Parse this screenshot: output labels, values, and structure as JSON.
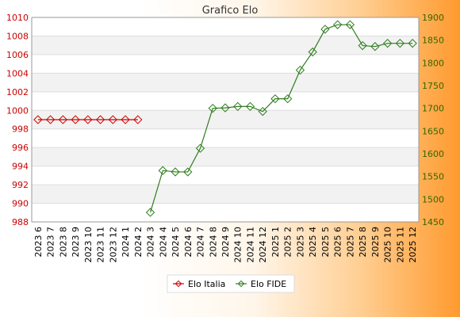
{
  "chart_data": {
    "type": "line",
    "title": "Grafico Elo",
    "categories": [
      "2023 6",
      "2023 7",
      "2023 8",
      "2023 9",
      "2023 10",
      "2023 11",
      "2023 12",
      "2024 1",
      "2024 2",
      "2024 3",
      "2024 4",
      "2024 5",
      "2024 6",
      "2024 7",
      "2024 8",
      "2024 9",
      "2024 10",
      "2024 11",
      "2024 12",
      "2025 1",
      "2025 2",
      "2025 3",
      "2025 4",
      "2025 5",
      "2025 6",
      "2025 7",
      "2025 8",
      "2025 9",
      "2025 10",
      "2025 11",
      "2025 12"
    ],
    "left_axis": {
      "ylim": [
        988,
        1010
      ],
      "ticks": [
        988,
        990,
        992,
        994,
        996,
        998,
        1000,
        1002,
        1004,
        1006,
        1008,
        1010
      ],
      "color": "#cc0000"
    },
    "right_axis": {
      "ylim": [
        1450,
        1900
      ],
      "ticks": [
        1450,
        1500,
        1550,
        1600,
        1650,
        1700,
        1750,
        1800,
        1850,
        1900
      ],
      "color": "#336600"
    },
    "grid": true,
    "legend_position": "bottom",
    "series": [
      {
        "name": "Elo Italia",
        "axis": "left",
        "color": "#cc0000",
        "values": [
          999,
          999,
          999,
          999,
          999,
          999,
          999,
          999,
          999,
          null,
          null,
          null,
          null,
          null,
          null,
          null,
          null,
          null,
          null,
          null,
          null,
          null,
          null,
          null,
          null,
          null,
          null,
          null,
          null,
          null,
          null
        ]
      },
      {
        "name": "Elo FIDE",
        "axis": "right",
        "color": "#2e7d1e",
        "values": [
          null,
          null,
          null,
          null,
          null,
          null,
          null,
          null,
          null,
          1471,
          1563,
          1560,
          1560,
          1612,
          1700,
          1701,
          1704,
          1704,
          1693,
          1721,
          1721,
          1784,
          1824,
          1874,
          1884,
          1884,
          1838,
          1836,
          1843,
          1843,
          1843
        ]
      }
    ]
  }
}
